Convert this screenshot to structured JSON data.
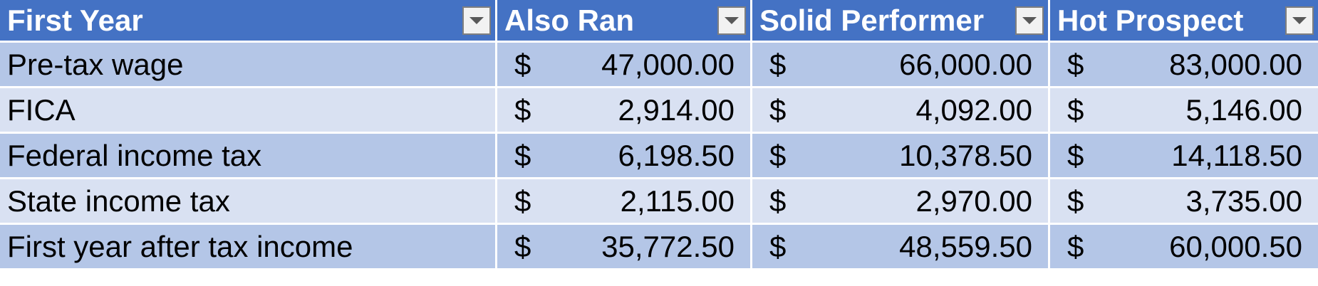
{
  "table": {
    "columns": [
      {
        "label": "First Year"
      },
      {
        "label": "Also Ran"
      },
      {
        "label": "Solid Performer"
      },
      {
        "label": "Hot Prospect"
      }
    ],
    "currency_symbol": "$",
    "rows": [
      {
        "label": "Pre-tax wage",
        "values": [
          "47,000.00",
          "66,000.00",
          "83,000.00"
        ]
      },
      {
        "label": "FICA",
        "values": [
          "2,914.00",
          "4,092.00",
          "5,146.00"
        ]
      },
      {
        "label": "Federal income tax",
        "values": [
          "6,198.50",
          "10,378.50",
          "14,118.50"
        ]
      },
      {
        "label": "State income tax",
        "values": [
          "2,115.00",
          "2,970.00",
          "3,735.00"
        ]
      },
      {
        "label": "First year after tax income",
        "values": [
          "35,772.50",
          "48,559.50",
          "60,000.50"
        ]
      }
    ]
  },
  "colors": {
    "header_bg": "#4472c4",
    "band_dark": "#b4c6e7",
    "band_light": "#d9e1f2"
  },
  "icons": {
    "filter": "chevron-down-icon"
  }
}
